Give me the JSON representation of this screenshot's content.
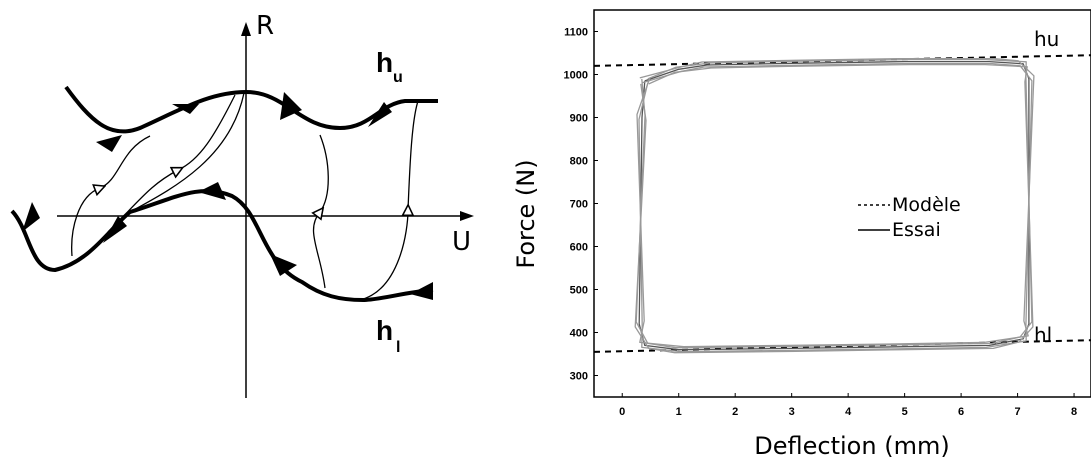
{
  "diagram": {
    "y_axis_label": "R",
    "x_axis_label": "U",
    "upper_curve": {
      "main": "h",
      "sub": "u"
    },
    "lower_curve": {
      "main": "h",
      "sub": "l"
    }
  },
  "chart_data": {
    "type": "line",
    "xlabel": "Deflection (mm)",
    "ylabel": "Force (N)",
    "xlim": [
      -0.5,
      8.3
    ],
    "ylim": [
      250,
      1150
    ],
    "x_ticks": [
      0,
      1,
      2,
      3,
      4,
      5,
      6,
      7,
      8
    ],
    "y_ticks": [
      300,
      400,
      500,
      600,
      700,
      800,
      900,
      1000,
      1100
    ],
    "legend": {
      "position": "center-right",
      "entries": [
        "Modèle",
        "Essai"
      ]
    },
    "annotations": [
      "hu",
      "hl"
    ],
    "series": [
      {
        "name": "Modèle",
        "style": "dashed",
        "x": [
          -0.5,
          8.3
        ],
        "y": [
          1020,
          1045
        ]
      },
      {
        "name": "Modèle",
        "style": "dashed",
        "x": [
          -0.5,
          8.3
        ],
        "y": [
          355,
          382
        ]
      },
      {
        "name": "Essai",
        "style": "solid",
        "x": [
          0.4,
          1.0,
          1.5,
          3.0,
          5.0,
          6.5,
          7.1,
          7.2,
          7.2,
          7.1,
          6.5,
          5.0,
          3.0,
          1.0,
          0.4,
          0.3,
          0.35,
          0.4
        ],
        "y": [
          985,
          1012,
          1022,
          1026,
          1030,
          1030,
          1025,
          990,
          420,
          385,
          370,
          367,
          363,
          360,
          370,
          420,
          900,
          985
        ]
      }
    ]
  }
}
